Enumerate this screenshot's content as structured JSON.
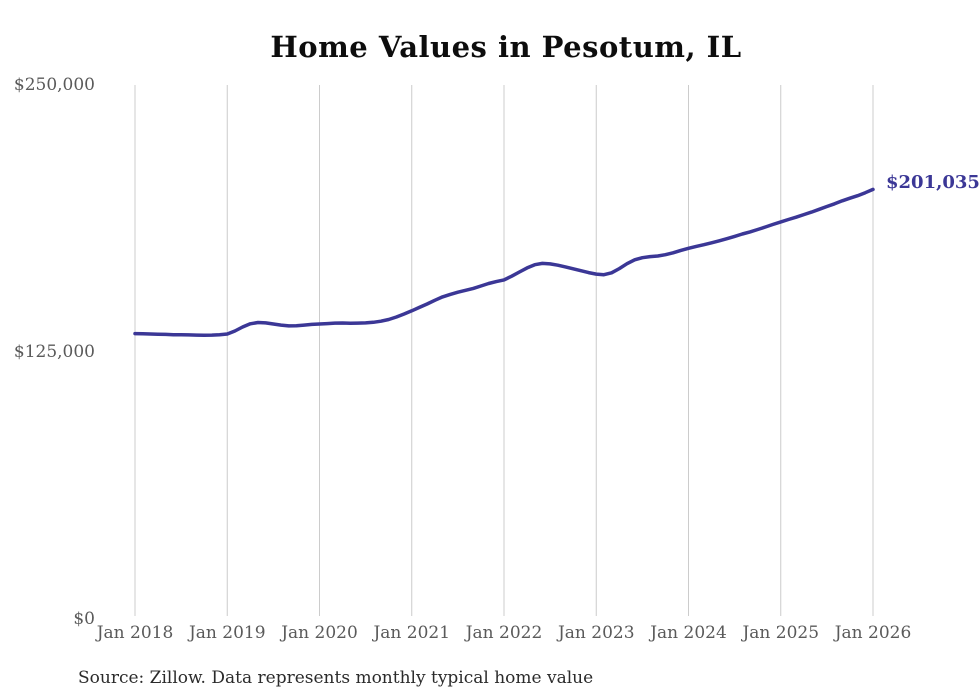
{
  "title": "Home Values in Pesotum, IL",
  "end_label": "$201,035",
  "source_note": "Source: Zillow. Data represents monthly typical home value",
  "colors": {
    "background": "#ffffff",
    "line": "#3b3796",
    "grid": "#cccccc",
    "axis_text": "#5a5a5a",
    "title_text": "#0d0d0d",
    "end_label_text": "#3b3796",
    "source_text": "#2b2b2b"
  },
  "y_axis": {
    "ticks": [
      "$0",
      "$125,000",
      "$250,000"
    ],
    "min": 0,
    "max": 250000
  },
  "x_axis": {
    "ticks": [
      "Jan 2018",
      "Jan 2019",
      "Jan 2020",
      "Jan 2021",
      "Jan 2022",
      "Jan 2023",
      "Jan 2024",
      "Jan 2025",
      "Jan 2026"
    ]
  },
  "chart_data": {
    "type": "line",
    "title": "Home Values in Pesotum, IL",
    "xlabel": "",
    "ylabel": "",
    "ylim": [
      0,
      250000
    ],
    "y_tick_labels": [
      "$0",
      "$125,000",
      "$250,000"
    ],
    "x_tick_labels": [
      "Jan 2018",
      "Jan 2019",
      "Jan 2020",
      "Jan 2021",
      "Jan 2022",
      "Jan 2023",
      "Jan 2024",
      "Jan 2025",
      "Jan 2026"
    ],
    "frequency": "monthly",
    "x_start": "Jan 2018",
    "x_end": "Jan 2026",
    "grid": "vertical-only",
    "legend": "none",
    "final_value": 201035,
    "final_value_label": "$201,035",
    "series": [
      {
        "name": "Typical home value",
        "values": [
          133400,
          133300,
          133200,
          133100,
          133000,
          132900,
          132850,
          132800,
          132700,
          132650,
          132700,
          132900,
          133200,
          134600,
          136500,
          138000,
          138600,
          138400,
          137900,
          137400,
          137000,
          137100,
          137400,
          137700,
          137900,
          138100,
          138300,
          138350,
          138250,
          138300,
          138400,
          138700,
          139200,
          140000,
          141200,
          142600,
          144100,
          145700,
          147300,
          149000,
          150600,
          151800,
          152800,
          153700,
          154600,
          155700,
          156900,
          157800,
          158600,
          160300,
          162300,
          164200,
          165700,
          166300,
          166100,
          165500,
          164700,
          163800,
          162900,
          162000,
          161300,
          161000,
          161900,
          163900,
          166200,
          168000,
          169000,
          169500,
          169800,
          170400,
          171300,
          172400,
          173400,
          174300,
          175100,
          176000,
          176900,
          177900,
          179000,
          180100,
          181100,
          182200,
          183400,
          184600,
          185800,
          186900,
          188000,
          189200,
          190400,
          191700,
          193000,
          194300,
          195700,
          196900,
          198100,
          199500,
          201035
        ]
      }
    ]
  }
}
